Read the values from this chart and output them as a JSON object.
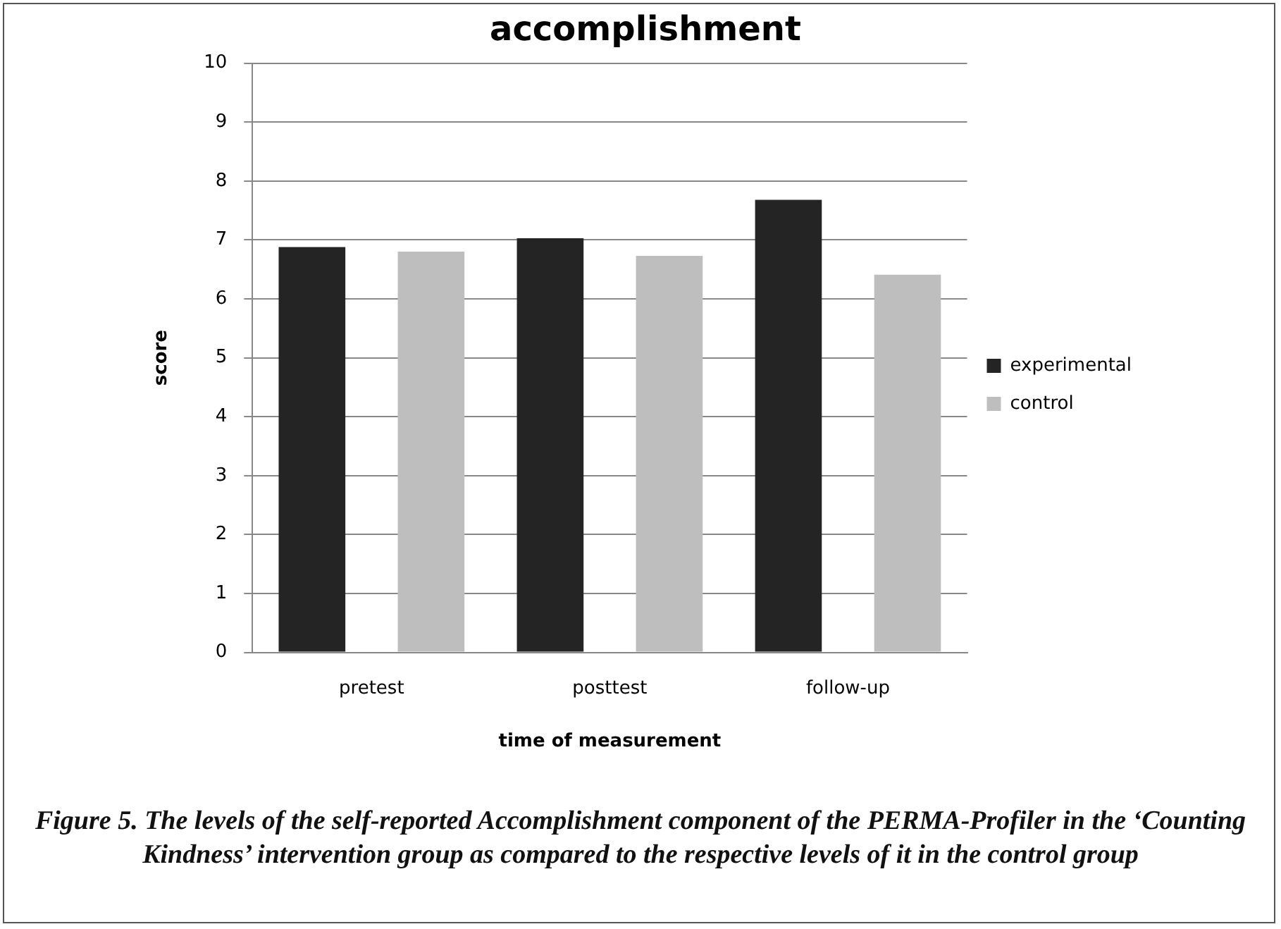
{
  "chart_data": {
    "type": "bar",
    "title": "accomplishment",
    "xlabel": "time of measurement",
    "ylabel": "score",
    "categories": [
      "pretest",
      "posttest",
      "follow-up"
    ],
    "series": [
      {
        "name": "experimental",
        "color": "#242424",
        "values": [
          6.88,
          7.03,
          7.68
        ]
      },
      {
        "name": "control",
        "color": "#bebebe",
        "values": [
          6.8,
          6.73,
          6.41
        ]
      }
    ],
    "ylim": [
      0,
      10
    ],
    "yticks": [
      0,
      1,
      2,
      3,
      4,
      5,
      6,
      7,
      8,
      9,
      10
    ],
    "grid": "y",
    "legend": "right",
    "annotations": [
      "Figure 5. The levels of the self-reported Accomplishment component of the PERMA-Profiler in the ‘Counting Kindness’ intervention group as compared to the respective levels of it in the control group"
    ]
  }
}
